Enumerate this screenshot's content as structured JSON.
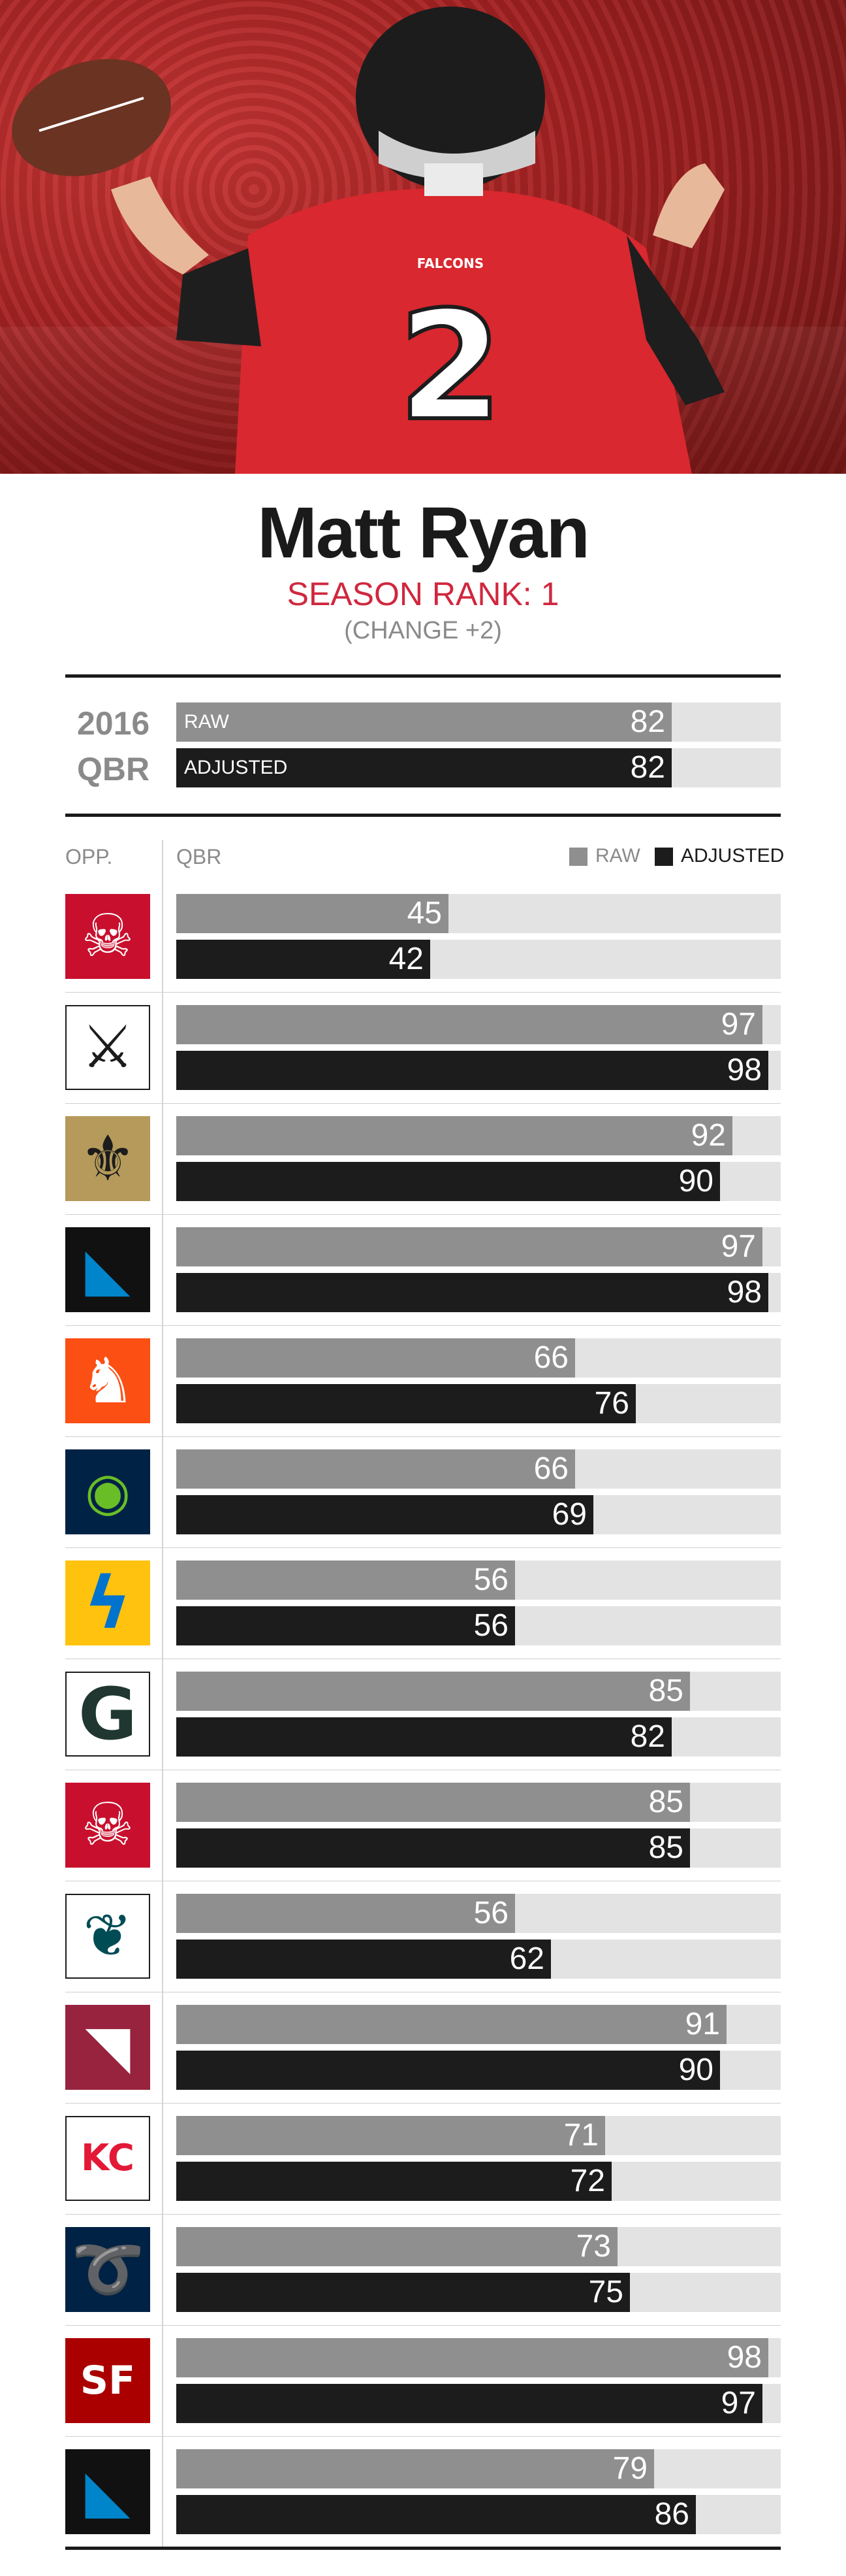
{
  "player": {
    "name": "Matt Ryan",
    "season_rank": "SEASON RANK: 1",
    "change": "(CHANGE +2)"
  },
  "summary": {
    "year": "2016",
    "label": "QBR",
    "raw_label": "RAW",
    "adjusted_label": "ADJUSTED",
    "raw": 82,
    "adjusted": 82
  },
  "headers": {
    "opp": "OPP.",
    "qbr": "QBR",
    "legend_raw": "RAW",
    "legend_adjusted": "ADJUSTED"
  },
  "colors": {
    "raw": "#8f8f8f",
    "adjusted": "#1c1c1c",
    "track": "#e3e3e3",
    "accent": "#d0273e"
  },
  "chart_data": {
    "type": "bar",
    "ylim": [
      0,
      100
    ],
    "categories": [
      "Buccaneers",
      "Raiders",
      "Saints",
      "Panthers",
      "Broncos",
      "Seahawks",
      "Chargers",
      "Packers",
      "Buccaneers",
      "Eagles",
      "Cardinals",
      "Chiefs",
      "Rams",
      "49ers",
      "Panthers"
    ],
    "series": [
      {
        "name": "RAW",
        "values": [
          45,
          97,
          92,
          97,
          66,
          66,
          56,
          85,
          85,
          56,
          91,
          71,
          73,
          98,
          79
        ]
      },
      {
        "name": "ADJUSTED",
        "values": [
          42,
          98,
          90,
          98,
          76,
          69,
          56,
          82,
          85,
          62,
          90,
          72,
          75,
          97,
          86
        ]
      }
    ],
    "opponent_logos": [
      "buccaneers-logo-icon",
      "raiders-logo-icon",
      "saints-logo-icon",
      "panthers-logo-icon",
      "broncos-logo-icon",
      "seahawks-logo-icon",
      "chargers-logo-icon",
      "packers-logo-icon",
      "buccaneers-logo-icon",
      "eagles-logo-icon",
      "cardinals-logo-icon",
      "chiefs-logo-icon",
      "rams-logo-icon",
      "49ers-logo-icon",
      "panthers-logo-icon"
    ]
  }
}
